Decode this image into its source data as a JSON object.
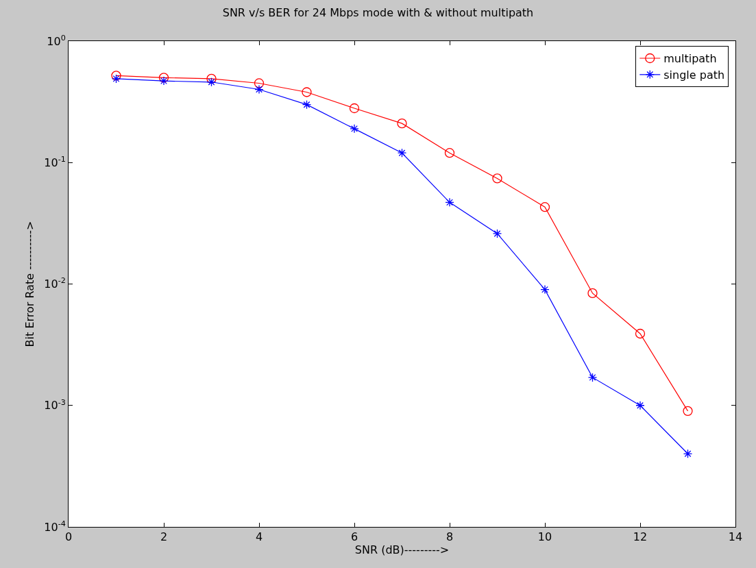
{
  "chart_data": {
    "type": "line",
    "title": "SNR v/s BER for 24 Mbps mode with & without multipath",
    "xlabel": "SNR (dB)--------->",
    "ylabel": "Bit Error Rate ---------->",
    "log": "y",
    "legend": "top right",
    "x": [
      1,
      2,
      3,
      4,
      5,
      6,
      7,
      8,
      9,
      10,
      11,
      12,
      13
    ],
    "series": [
      {
        "name": "multipath",
        "color": "#ff0000",
        "marker": "circle",
        "values": [
          0.52,
          0.5,
          0.49,
          0.45,
          0.38,
          0.28,
          0.21,
          0.12,
          0.074,
          0.043,
          0.0084,
          0.0039,
          0.0009
        ]
      },
      {
        "name": "single path",
        "color": "#0000ff",
        "marker": "cross",
        "values": [
          0.49,
          0.47,
          0.46,
          0.4,
          0.3,
          0.19,
          0.12,
          0.047,
          0.026,
          0.009,
          0.0017,
          0.001,
          0.0004
        ]
      }
    ],
    "xlim": [
      0,
      14
    ],
    "xticks": [
      0,
      2,
      4,
      6,
      8,
      10,
      12,
      14
    ],
    "ylim": [
      0.0001,
      1
    ],
    "yticks": [
      {
        "value": 0.0001,
        "label": "10$^{-4}$"
      },
      {
        "value": 0.001,
        "label": "10$^{-3}$"
      },
      {
        "value": 0.01,
        "label": "10$^{-2}$"
      },
      {
        "value": 0.1,
        "label": "10$^{-1}$"
      },
      {
        "value": 1,
        "label": "10$^{0}$"
      }
    ]
  }
}
